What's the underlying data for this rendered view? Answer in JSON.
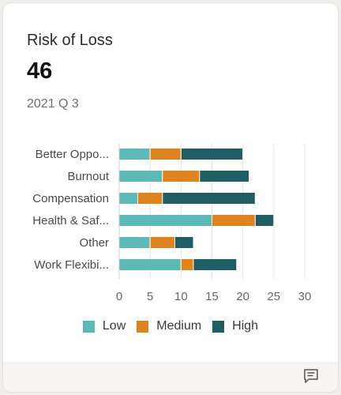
{
  "card": {
    "title": "Risk of Loss",
    "metric_value": "46",
    "period": "2021 Q 3"
  },
  "colors": {
    "low": "#5bbab6",
    "medium": "#e1831c",
    "high": "#1f5c63",
    "grid": "#e3e3e3",
    "axis_text": "#666666"
  },
  "chart_data": {
    "type": "bar",
    "orientation": "horizontal",
    "stacked": true,
    "categories": [
      "Better Oppo...",
      "Burnout",
      "Compensation",
      "Health & Saf...",
      "Other",
      "Work Flexibi..."
    ],
    "series": [
      {
        "name": "Low",
        "values": [
          5,
          7,
          3,
          15,
          5,
          10
        ]
      },
      {
        "name": "Medium",
        "values": [
          5,
          6,
          4,
          7,
          4,
          2
        ]
      },
      {
        "name": "High",
        "values": [
          10,
          8,
          15,
          3,
          3,
          7
        ]
      }
    ],
    "x_ticks": [
      0,
      5,
      10,
      15,
      20,
      25,
      30
    ],
    "xlim": [
      0,
      32
    ],
    "grid": true,
    "legend_position": "bottom"
  },
  "footer": {
    "icon": "comment-icon"
  }
}
